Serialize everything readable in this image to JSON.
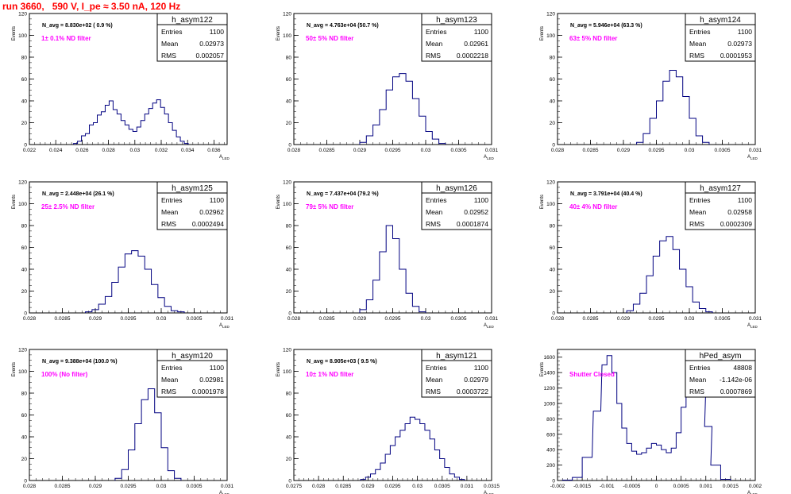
{
  "run_title": "run 3660,   590 V, I_pe ≈ 3.50 nA, 120 Hz",
  "y_axis_label": "Events",
  "x_axis_label": "A",
  "x_axis_label_sub": "LED",
  "colors": {
    "title": "#ff0000",
    "histogram": "#000080",
    "annotation": "#ff00ff",
    "axis": "#000000"
  },
  "stats_labels": {
    "entries": "Entries",
    "mean": "Mean",
    "rms": "RMS"
  },
  "chart_data": [
    {
      "type": "bar",
      "name": "h_asym122",
      "entries": "1100",
      "mean": "0.02973",
      "rms": "0.002057",
      "n_avg": "N_avg = 8.830e+02 ( 0.9 %)",
      "annotation": "1± 0.1% ND filter",
      "xlim": [
        0.022,
        0.037
      ],
      "ylim": [
        0,
        120
      ],
      "xticks": [
        "0.022",
        "0.024",
        "0.026",
        "0.028",
        "0.03",
        "0.032",
        "0.034",
        "0.036"
      ],
      "xtick_values": [
        0.022,
        0.024,
        0.026,
        0.028,
        0.03,
        0.032,
        0.034,
        0.036
      ],
      "yticks": [
        0,
        20,
        40,
        60,
        80,
        100,
        120
      ],
      "x": [
        0.0255,
        0.0258,
        0.0261,
        0.0264,
        0.0267,
        0.027,
        0.0273,
        0.0276,
        0.0279,
        0.0282,
        0.0285,
        0.0288,
        0.0291,
        0.0294,
        0.0297,
        0.03,
        0.0303,
        0.0306,
        0.0309,
        0.0312,
        0.0315,
        0.0318,
        0.0321,
        0.0324,
        0.0327,
        0.033,
        0.0333,
        0.0336,
        0.0339
      ],
      "values": [
        1,
        3,
        8,
        10,
        18,
        20,
        27,
        30,
        36,
        40,
        32,
        28,
        22,
        18,
        14,
        12,
        16,
        22,
        28,
        33,
        38,
        41,
        34,
        28,
        20,
        13,
        7,
        3,
        1
      ]
    },
    {
      "type": "bar",
      "name": "h_asym123",
      "entries": "1100",
      "mean": "0.02961",
      "rms": "0.0002218",
      "n_avg": "N_avg = 4.763e+04 (50.7 %)",
      "annotation": "50± 5% ND filter",
      "xlim": [
        0.028,
        0.031
      ],
      "ylim": [
        0,
        120
      ],
      "xticks": [
        "0.028",
        "0.0285",
        "0.029",
        "0.0295",
        "0.03",
        "0.0305",
        "0.031"
      ],
      "xtick_values": [
        0.028,
        0.0285,
        0.029,
        0.0295,
        0.03,
        0.0305,
        0.031
      ],
      "yticks": [
        0,
        20,
        40,
        60,
        80,
        100,
        120
      ],
      "x": [
        0.02905,
        0.02915,
        0.02925,
        0.02935,
        0.02945,
        0.02955,
        0.02965,
        0.02975,
        0.02985,
        0.02995,
        0.03005,
        0.03015,
        0.03025
      ],
      "values": [
        2,
        8,
        18,
        32,
        50,
        62,
        65,
        58,
        42,
        26,
        12,
        5,
        1
      ]
    },
    {
      "type": "bar",
      "name": "h_asym124",
      "entries": "1100",
      "mean": "0.02973",
      "rms": "0.0001953",
      "n_avg": "N_avg = 5.946e+04 (63.3 %)",
      "annotation": "63± 5% ND filter",
      "xlim": [
        0.028,
        0.031
      ],
      "ylim": [
        0,
        120
      ],
      "xticks": [
        "0.028",
        "0.0285",
        "0.029",
        "0.0295",
        "0.03",
        "0.0305",
        "0.031"
      ],
      "xtick_values": [
        0.028,
        0.0285,
        0.029,
        0.0295,
        0.03,
        0.0305,
        0.031
      ],
      "yticks": [
        0,
        20,
        40,
        60,
        80,
        100,
        120
      ],
      "x": [
        0.02925,
        0.02935,
        0.02945,
        0.02955,
        0.02965,
        0.02975,
        0.02985,
        0.02995,
        0.03005,
        0.03015,
        0.03025
      ],
      "values": [
        2,
        10,
        24,
        40,
        58,
        68,
        62,
        44,
        24,
        8,
        2
      ]
    },
    {
      "type": "bar",
      "name": "h_asym125",
      "entries": "1100",
      "mean": "0.02962",
      "rms": "0.0002494",
      "n_avg": "N_avg = 2.448e+04 (26.1 %)",
      "annotation": "25± 2.5% ND filter",
      "xlim": [
        0.028,
        0.031
      ],
      "ylim": [
        0,
        120
      ],
      "xticks": [
        "0.028",
        "0.0285",
        "0.029",
        "0.0295",
        "0.03",
        "0.0305",
        "0.031"
      ],
      "xtick_values": [
        0.028,
        0.0285,
        0.029,
        0.0295,
        0.03,
        0.0305,
        0.031
      ],
      "yticks": [
        0,
        20,
        40,
        60,
        80,
        100,
        120
      ],
      "x": [
        0.0289,
        0.029,
        0.0291,
        0.0292,
        0.0293,
        0.0294,
        0.0295,
        0.0296,
        0.0297,
        0.0298,
        0.0299,
        0.03,
        0.0301,
        0.0302,
        0.0303
      ],
      "values": [
        1,
        3,
        8,
        15,
        28,
        42,
        54,
        57,
        52,
        40,
        26,
        14,
        6,
        2,
        1
      ]
    },
    {
      "type": "bar",
      "name": "h_asym126",
      "entries": "1100",
      "mean": "0.02952",
      "rms": "0.0001874",
      "n_avg": "N_avg = 7.437e+04 (79.2 %)",
      "annotation": "79± 5% ND filter",
      "xlim": [
        0.028,
        0.031
      ],
      "ylim": [
        0,
        120
      ],
      "xticks": [
        "0.028",
        "0.0285",
        "0.029",
        "0.0295",
        "0.03",
        "0.0305",
        "0.031"
      ],
      "xtick_values": [
        0.028,
        0.0285,
        0.029,
        0.0295,
        0.03,
        0.0305,
        0.031
      ],
      "yticks": [
        0,
        20,
        40,
        60,
        80,
        100,
        120
      ],
      "x": [
        0.02905,
        0.02915,
        0.02925,
        0.02935,
        0.02945,
        0.02955,
        0.02965,
        0.02975,
        0.02985,
        0.02995
      ],
      "values": [
        3,
        12,
        30,
        56,
        80,
        68,
        40,
        18,
        6,
        1
      ]
    },
    {
      "type": "bar",
      "name": "h_asym127",
      "entries": "1100",
      "mean": "0.02958",
      "rms": "0.0002309",
      "n_avg": "N_avg = 3.791e+04 (40.4 %)",
      "annotation": "40± 4% ND filter",
      "xlim": [
        0.028,
        0.031
      ],
      "ylim": [
        0,
        120
      ],
      "xticks": [
        "0.028",
        "0.0285",
        "0.029",
        "0.0295",
        "0.03",
        "0.0305",
        "0.031"
      ],
      "xtick_values": [
        0.028,
        0.0285,
        0.029,
        0.0295,
        0.03,
        0.0305,
        0.031
      ],
      "yticks": [
        0,
        20,
        40,
        60,
        80,
        100,
        120
      ],
      "x": [
        0.0291,
        0.0292,
        0.0293,
        0.0294,
        0.0295,
        0.0296,
        0.0297,
        0.0298,
        0.0299,
        0.03,
        0.0301,
        0.0302,
        0.0303
      ],
      "values": [
        2,
        8,
        18,
        34,
        52,
        66,
        70,
        58,
        40,
        24,
        10,
        4,
        1
      ]
    },
    {
      "type": "bar",
      "name": "h_asym120",
      "entries": "1100",
      "mean": "0.02981",
      "rms": "0.0001978",
      "n_avg": "N_avg = 9.388e+04 (100.0 %)",
      "annotation": "100% (No filter)",
      "xlim": [
        0.028,
        0.031
      ],
      "ylim": [
        0,
        120
      ],
      "xticks": [
        "0.028",
        "0.0285",
        "0.029",
        "0.0295",
        "0.03",
        "0.0305",
        "0.031"
      ],
      "xtick_values": [
        0.028,
        0.0285,
        0.029,
        0.0295,
        0.03,
        0.0305,
        0.031
      ],
      "yticks": [
        0,
        20,
        40,
        60,
        80,
        100,
        120
      ],
      "x": [
        0.02935,
        0.02945,
        0.02955,
        0.02965,
        0.02975,
        0.02985,
        0.02995,
        0.03005,
        0.03015,
        0.03025
      ],
      "values": [
        2,
        10,
        28,
        52,
        74,
        84,
        62,
        30,
        9,
        2
      ]
    },
    {
      "type": "bar",
      "name": "h_asym121",
      "entries": "1100",
      "mean": "0.02979",
      "rms": "0.0003722",
      "n_avg": "N_avg = 8.905e+03 ( 9.5 %)",
      "annotation": "10± 1% ND filter",
      "xlim": [
        0.0275,
        0.0315
      ],
      "ylim": [
        0,
        120
      ],
      "xticks": [
        "0.0275",
        "0.028",
        "0.0285",
        "0.029",
        "0.0295",
        "0.03",
        "0.0305",
        "0.031",
        "0.0315"
      ],
      "xtick_values": [
        0.0275,
        0.028,
        0.0285,
        0.029,
        0.0295,
        0.03,
        0.0305,
        0.031,
        0.0315
      ],
      "yticks": [
        0,
        20,
        40,
        60,
        80,
        100,
        120
      ],
      "x": [
        0.0289,
        0.029,
        0.0291,
        0.0292,
        0.0293,
        0.0294,
        0.0295,
        0.0296,
        0.0297,
        0.0298,
        0.0299,
        0.03,
        0.0301,
        0.0302,
        0.0303,
        0.0304,
        0.0305,
        0.0306,
        0.0307,
        0.0308,
        0.0309
      ],
      "values": [
        1,
        3,
        6,
        10,
        16,
        24,
        32,
        40,
        46,
        52,
        58,
        56,
        52,
        46,
        38,
        28,
        20,
        12,
        6,
        3,
        1
      ]
    },
    {
      "type": "bar",
      "name": "hPed_asym",
      "entries": "48808",
      "mean": "-1.142e-06",
      "rms": "0.0007869",
      "n_avg": "",
      "annotation": "Shutter Closed",
      "xlim": [
        -0.002,
        0.002
      ],
      "ylim": [
        0,
        1700
      ],
      "xticks": [
        "-0.002",
        "-0.0015",
        "-0.001",
        "-0.0005",
        "0",
        "0.0005",
        "0.001",
        "0.0015",
        "0.002"
      ],
      "xtick_values": [
        -0.002,
        -0.0015,
        -0.001,
        -0.0005,
        0,
        0.0005,
        0.001,
        0.0015,
        0.002
      ],
      "yticks": [
        0,
        200,
        400,
        600,
        800,
        1000,
        1200,
        1400,
        1600
      ],
      "x": [
        -0.0018,
        -0.0016,
        -0.0014,
        -0.0012,
        -0.00105,
        -0.00095,
        -0.00085,
        -0.00075,
        -0.00065,
        -0.00055,
        -0.00045,
        -0.00035,
        -0.00025,
        -0.00015,
        -5e-05,
        5e-05,
        0.00015,
        0.00025,
        0.00035,
        0.00045,
        0.00055,
        0.00065,
        0.00075,
        0.00085,
        0.00095,
        0.00105,
        0.0012,
        0.0014
      ],
      "values": [
        5,
        40,
        300,
        900,
        1500,
        1620,
        1400,
        1000,
        680,
        480,
        380,
        340,
        360,
        420,
        480,
        460,
        400,
        360,
        420,
        620,
        950,
        1300,
        1560,
        1520,
        1200,
        700,
        200,
        15
      ]
    }
  ]
}
